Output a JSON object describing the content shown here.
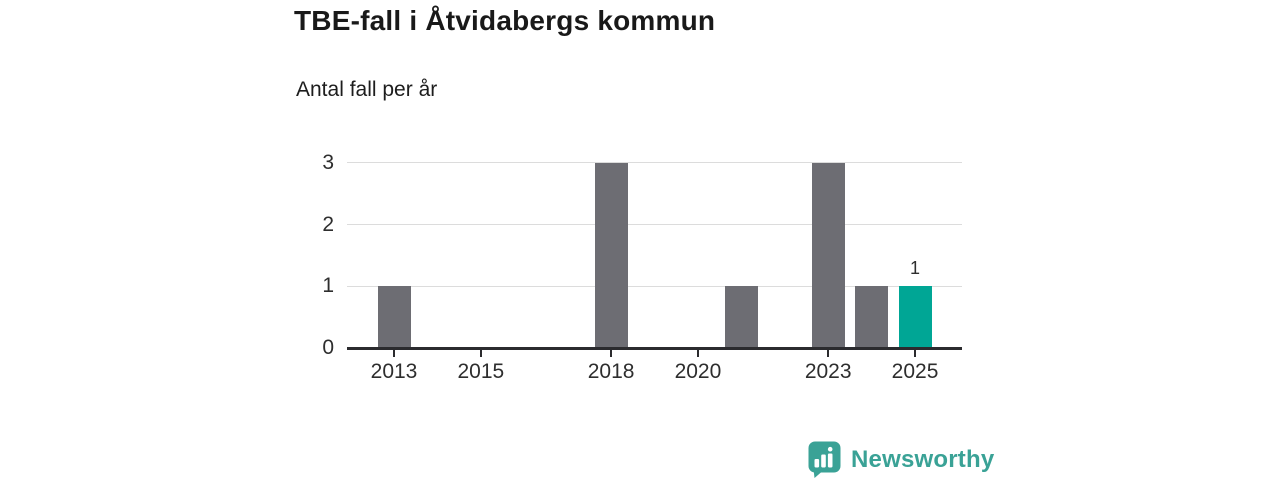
{
  "header": {
    "title": "TBE-fall i Åtvidabergs kommun",
    "subtitle": "Antal fall per år"
  },
  "chart_data": {
    "type": "bar",
    "title": "TBE-fall i Åtvidabergs kommun",
    "subtitle": "Antal fall per år",
    "categories": [
      "2013",
      "2014",
      "2015",
      "2016",
      "2017",
      "2018",
      "2019",
      "2020",
      "2021",
      "2022",
      "2023",
      "2024",
      "2025"
    ],
    "values": [
      1,
      0,
      0,
      0,
      0,
      3,
      0,
      0,
      1,
      0,
      3,
      1,
      1
    ],
    "highlight_category": "2025",
    "data_labels": [
      {
        "category": "2025",
        "label": "1"
      }
    ],
    "x_tick_labels": [
      "2013",
      "2015",
      "2018",
      "2020",
      "2023",
      "2025"
    ],
    "yticks": [
      "0",
      "1",
      "2",
      "3"
    ],
    "ylim": [
      0,
      3
    ],
    "grid": "horizontal-only",
    "legend": "none",
    "colors": {
      "bar": "#6d6d73",
      "highlight_bar": "#00a695",
      "gridline": "#dcdcdc",
      "axis": "#2b2b2e",
      "label": "#2e2e2e"
    }
  },
  "branding": {
    "logo_text": "Newsworthy",
    "logo_color": "#3aa296",
    "logo_icon": "speech-bubble-bar-chart"
  }
}
